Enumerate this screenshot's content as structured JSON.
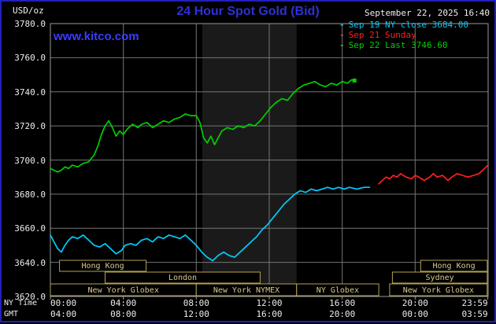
{
  "colors": {
    "background": "#000000",
    "frame_border": "#2020bb",
    "title_blue": "#3030d8",
    "kitco_blue": "#3b3bff",
    "text_white": "#f0f0f0",
    "grid": "#757575",
    "plot_border": "#9a9a9a",
    "session_border": "#b5a24e",
    "session_text": "#d8c88e",
    "band": "#1a1a1a",
    "series_cyan": "#00ccff",
    "series_red": "#ff2020",
    "series_green": "#00cf00"
  },
  "header": {
    "unit_label": "USD/oz",
    "title": "24 Hour Spot Gold (Bid)",
    "datetime": "September 22, 2025 16:40",
    "watermark": "www.kitco.com",
    "legend_dash": "-",
    "legend": [
      {
        "label": "Sep 19 NY close 3684.00",
        "color": "#00ccff"
      },
      {
        "label": "Sep 21 Sunday",
        "color": "#ff2020"
      },
      {
        "label": "Sep 22 Last 3746.60",
        "color": "#00cf00"
      }
    ]
  },
  "axes": {
    "y_tick_labels": [
      "3780.0",
      "3760.0",
      "3740.0",
      "3720.0",
      "3700.0",
      "3680.0",
      "3660.0",
      "3640.0",
      "3620.0"
    ],
    "x_rows": [
      {
        "name": "NY Time",
        "labels": [
          "00:00",
          "04:00",
          "08:00",
          "12:00",
          "16:00",
          "20:00",
          "23:59"
        ]
      },
      {
        "name": "GMT",
        "labels": [
          "04:00",
          "08:00",
          "12:00",
          "16:00",
          "20:00",
          "00:00",
          "03:59"
        ]
      }
    ]
  },
  "sessions": [
    {
      "label": "Hong Kong",
      "row": 0,
      "start": 0.5,
      "end": 5.25
    },
    {
      "label": "Hong Kong",
      "row": 0,
      "start": 20.3,
      "end": 23.95
    },
    {
      "label": "London",
      "row": 1,
      "start": 3.0,
      "end": 11.5
    },
    {
      "label": "Sydney",
      "row": 1,
      "start": 18.75,
      "end": 23.95
    },
    {
      "label": "New York Globex",
      "row": 2,
      "start": 0.0,
      "end": 8.0
    },
    {
      "label": "New York NYMEX",
      "row": 2,
      "start": 8.0,
      "end": 13.5
    },
    {
      "label": "NY Globex",
      "row": 2,
      "start": 13.5,
      "end": 18.0
    },
    {
      "label": "New York Globex",
      "row": 2,
      "start": 18.6,
      "end": 23.95
    }
  ],
  "chart_data": {
    "type": "line",
    "title": "24 Hour Spot Gold (Bid)",
    "ylabel": "USD/oz",
    "xlabel": "NY Time (hours)",
    "ylim": [
      3620,
      3780
    ],
    "xlim": [
      0,
      24
    ],
    "grid": true,
    "legend_position": "top-right",
    "y_ticks": [
      3780,
      3760,
      3740,
      3720,
      3700,
      3680,
      3660,
      3640,
      3620
    ],
    "x_ticks_hours": [
      0,
      4,
      8,
      12,
      16,
      20,
      23.983
    ],
    "highlight_band_hours": [
      8.33,
      13.5
    ],
    "ny_close": 3684.0,
    "last": 3746.6,
    "series": [
      {
        "name": "Sep 19 NY close",
        "color": "#00ccff",
        "close_value": 3684.0,
        "points": [
          [
            0.0,
            3656
          ],
          [
            0.2,
            3652
          ],
          [
            0.4,
            3648
          ],
          [
            0.6,
            3646
          ],
          [
            0.8,
            3650
          ],
          [
            1.0,
            3653
          ],
          [
            1.2,
            3655
          ],
          [
            1.5,
            3654
          ],
          [
            1.8,
            3656
          ],
          [
            2.1,
            3653
          ],
          [
            2.4,
            3650
          ],
          [
            2.7,
            3649
          ],
          [
            3.0,
            3651
          ],
          [
            3.3,
            3648
          ],
          [
            3.6,
            3645
          ],
          [
            3.9,
            3647
          ],
          [
            4.1,
            3650
          ],
          [
            4.4,
            3651
          ],
          [
            4.7,
            3650
          ],
          [
            5.0,
            3653
          ],
          [
            5.3,
            3654
          ],
          [
            5.6,
            3652
          ],
          [
            5.9,
            3655
          ],
          [
            6.2,
            3654
          ],
          [
            6.5,
            3656
          ],
          [
            6.8,
            3655
          ],
          [
            7.1,
            3654
          ],
          [
            7.4,
            3656
          ],
          [
            7.7,
            3653
          ],
          [
            8.0,
            3650
          ],
          [
            8.3,
            3646
          ],
          [
            8.6,
            3643
          ],
          [
            8.9,
            3641
          ],
          [
            9.2,
            3644
          ],
          [
            9.5,
            3646
          ],
          [
            9.8,
            3644
          ],
          [
            10.1,
            3643
          ],
          [
            10.4,
            3646
          ],
          [
            10.7,
            3649
          ],
          [
            11.0,
            3652
          ],
          [
            11.3,
            3655
          ],
          [
            11.6,
            3659
          ],
          [
            11.9,
            3662
          ],
          [
            12.2,
            3666
          ],
          [
            12.5,
            3670
          ],
          [
            12.8,
            3674
          ],
          [
            13.1,
            3677
          ],
          [
            13.4,
            3680
          ],
          [
            13.7,
            3682
          ],
          [
            14.0,
            3681
          ],
          [
            14.3,
            3683
          ],
          [
            14.6,
            3682
          ],
          [
            14.9,
            3683
          ],
          [
            15.2,
            3684
          ],
          [
            15.5,
            3683
          ],
          [
            15.8,
            3684
          ],
          [
            16.1,
            3683
          ],
          [
            16.4,
            3684
          ],
          [
            16.8,
            3683
          ],
          [
            17.2,
            3684
          ],
          [
            17.5,
            3684
          ]
        ]
      },
      {
        "name": "Sep 21 Sunday",
        "color": "#ff2020",
        "points": [
          [
            18.0,
            3686
          ],
          [
            18.2,
            3688
          ],
          [
            18.4,
            3690
          ],
          [
            18.6,
            3689
          ],
          [
            18.8,
            3691
          ],
          [
            19.0,
            3690
          ],
          [
            19.2,
            3692
          ],
          [
            19.5,
            3690
          ],
          [
            19.8,
            3689
          ],
          [
            20.0,
            3691
          ],
          [
            20.2,
            3690
          ],
          [
            20.5,
            3688
          ],
          [
            20.8,
            3690
          ],
          [
            21.0,
            3692
          ],
          [
            21.2,
            3690
          ],
          [
            21.5,
            3691
          ],
          [
            21.8,
            3688
          ],
          [
            22.0,
            3690
          ],
          [
            22.3,
            3692
          ],
          [
            22.6,
            3691
          ],
          [
            22.9,
            3690
          ],
          [
            23.2,
            3691
          ],
          [
            23.5,
            3692
          ],
          [
            23.7,
            3694
          ],
          [
            23.9,
            3696
          ],
          [
            23.98,
            3697
          ]
        ]
      },
      {
        "name": "Sep 22",
        "color": "#00cf00",
        "last_value": 3746.6,
        "end_marker": true,
        "points": [
          [
            0.0,
            3695
          ],
          [
            0.2,
            3694
          ],
          [
            0.4,
            3693
          ],
          [
            0.6,
            3694
          ],
          [
            0.8,
            3696
          ],
          [
            1.0,
            3695
          ],
          [
            1.2,
            3697
          ],
          [
            1.5,
            3696
          ],
          [
            1.8,
            3698
          ],
          [
            2.1,
            3699
          ],
          [
            2.4,
            3703
          ],
          [
            2.6,
            3708
          ],
          [
            2.8,
            3715
          ],
          [
            3.0,
            3720
          ],
          [
            3.2,
            3723
          ],
          [
            3.4,
            3719
          ],
          [
            3.6,
            3714
          ],
          [
            3.8,
            3717
          ],
          [
            4.0,
            3715
          ],
          [
            4.2,
            3718
          ],
          [
            4.5,
            3721
          ],
          [
            4.8,
            3719
          ],
          [
            5.0,
            3721
          ],
          [
            5.3,
            3722
          ],
          [
            5.6,
            3719
          ],
          [
            5.9,
            3721
          ],
          [
            6.2,
            3723
          ],
          [
            6.5,
            3722
          ],
          [
            6.8,
            3724
          ],
          [
            7.1,
            3725
          ],
          [
            7.4,
            3727
          ],
          [
            7.7,
            3726
          ],
          [
            8.0,
            3726
          ],
          [
            8.2,
            3722
          ],
          [
            8.4,
            3713
          ],
          [
            8.6,
            3710
          ],
          [
            8.8,
            3714
          ],
          [
            9.0,
            3709
          ],
          [
            9.2,
            3713
          ],
          [
            9.4,
            3717
          ],
          [
            9.7,
            3719
          ],
          [
            10.0,
            3718
          ],
          [
            10.3,
            3720
          ],
          [
            10.6,
            3719
          ],
          [
            10.9,
            3721
          ],
          [
            11.2,
            3720
          ],
          [
            11.5,
            3723
          ],
          [
            11.8,
            3727
          ],
          [
            12.1,
            3731
          ],
          [
            12.4,
            3734
          ],
          [
            12.7,
            3736
          ],
          [
            13.0,
            3735
          ],
          [
            13.3,
            3739
          ],
          [
            13.6,
            3742
          ],
          [
            13.9,
            3744
          ],
          [
            14.2,
            3745
          ],
          [
            14.5,
            3746
          ],
          [
            14.8,
            3744
          ],
          [
            15.1,
            3743
          ],
          [
            15.4,
            3745
          ],
          [
            15.7,
            3744
          ],
          [
            16.0,
            3746
          ],
          [
            16.3,
            3745
          ],
          [
            16.5,
            3747
          ],
          [
            16.67,
            3746.6
          ]
        ]
      }
    ]
  }
}
